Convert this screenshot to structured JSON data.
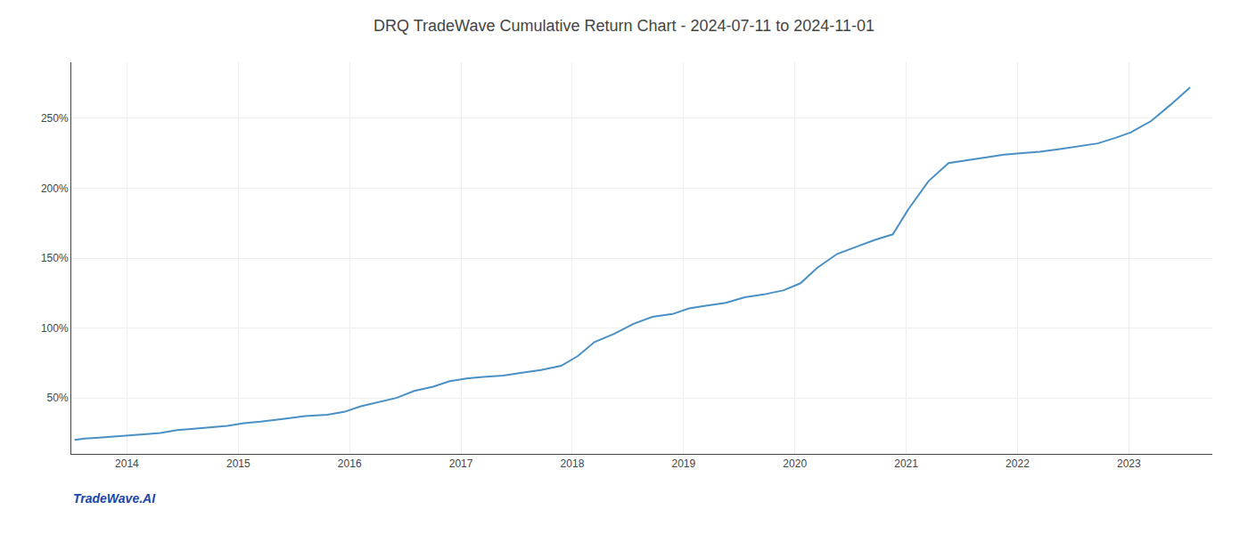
{
  "chart_data": {
    "type": "line",
    "title": "DRQ TradeWave Cumulative Return Chart - 2024-07-11 to 2024-11-01",
    "annotations": [
      {
        "text": "TradeWave.AI"
      }
    ],
    "color": "#4a90c4",
    "grid": true,
    "xlim": [
      2013.5,
      2023.75
    ],
    "ylim": [
      10,
      290
    ],
    "xticks": [
      2014,
      2015,
      2016,
      2017,
      2018,
      2019,
      2020,
      2021,
      2022,
      2023
    ],
    "yticks": [
      {
        "value": 50,
        "label": "50%"
      },
      {
        "value": 100,
        "label": "100%"
      },
      {
        "value": 150,
        "label": "150%"
      },
      {
        "value": 200,
        "label": "200%"
      },
      {
        "value": 250,
        "label": "250%"
      }
    ],
    "x": [
      2013.53,
      2013.62,
      2013.72,
      2013.82,
      2013.92,
      2014.02,
      2014.15,
      2014.3,
      2014.45,
      2014.6,
      2014.75,
      2014.9,
      2015.05,
      2015.2,
      2015.4,
      2015.6,
      2015.8,
      2015.95,
      2016.1,
      2016.25,
      2016.42,
      2016.58,
      2016.75,
      2016.9,
      2017.05,
      2017.2,
      2017.38,
      2017.55,
      2017.72,
      2017.9,
      2018.05,
      2018.2,
      2018.38,
      2018.55,
      2018.72,
      2018.9,
      2019.05,
      2019.2,
      2019.38,
      2019.55,
      2019.72,
      2019.9,
      2020.05,
      2020.2,
      2020.38,
      2020.55,
      2020.72,
      2020.88,
      2021.02,
      2021.2,
      2021.38,
      2021.55,
      2021.72,
      2021.88,
      2022.02,
      2022.2,
      2022.38,
      2022.55,
      2022.72,
      2022.88,
      2023.02,
      2023.2,
      2023.38,
      2023.55
    ],
    "values": [
      20,
      21,
      21.5,
      22,
      22.5,
      23,
      24,
      25,
      27,
      28,
      29,
      30,
      32,
      33,
      35,
      37,
      38,
      40,
      44,
      47,
      50,
      55,
      58,
      62,
      64,
      65,
      66,
      68,
      70,
      73,
      80,
      90,
      96,
      103,
      108,
      110,
      114,
      116,
      118,
      122,
      124,
      127,
      132,
      143,
      153,
      158,
      163,
      167,
      185,
      205,
      218,
      220,
      222,
      224,
      225,
      226,
      228,
      230,
      232,
      236,
      240,
      248,
      260,
      272
    ]
  }
}
